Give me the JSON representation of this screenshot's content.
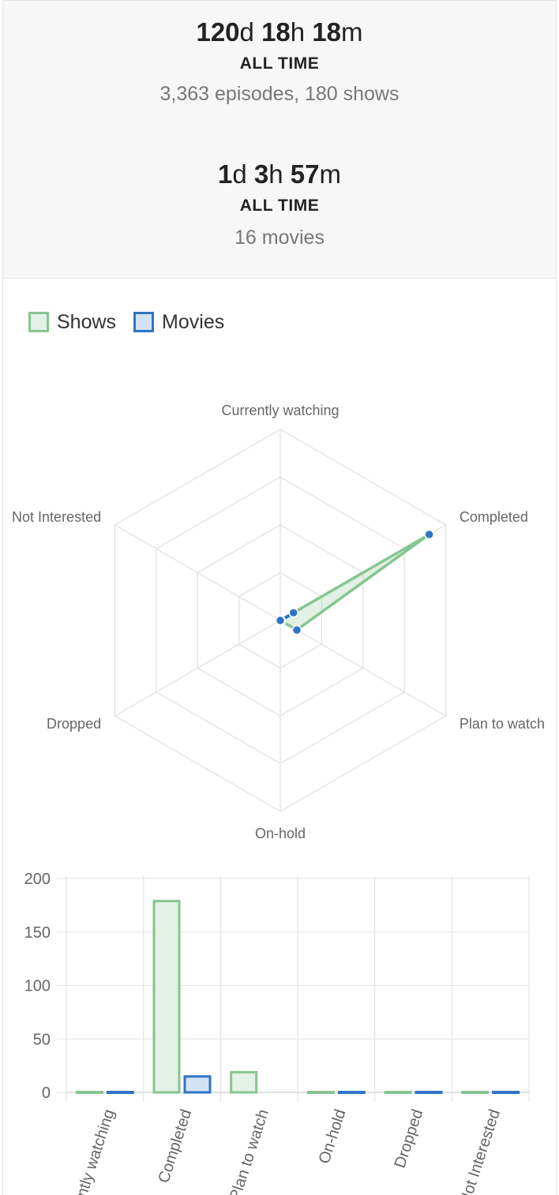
{
  "stats": {
    "shows": {
      "duration": [
        {
          "num": "120",
          "unit": "d"
        },
        {
          "num": "18",
          "unit": "h"
        },
        {
          "num": "18",
          "unit": "m"
        }
      ],
      "period": "ALL TIME",
      "detail": "3,363 episodes, 180 shows"
    },
    "movies": {
      "duration": [
        {
          "num": "1",
          "unit": "d"
        },
        {
          "num": "3",
          "unit": "h"
        },
        {
          "num": "57",
          "unit": "m"
        }
      ],
      "period": "ALL TIME",
      "detail": "16 movies"
    }
  },
  "legend": [
    {
      "label": "Shows",
      "border": "#86c691",
      "fill": "#e3f2e6"
    },
    {
      "label": "Movies",
      "border": "#2f74c7",
      "fill": "#d2e3f5"
    }
  ],
  "chart_data": [
    {
      "type": "radar",
      "categories": [
        "Currently watching",
        "Completed",
        "Plan to watch",
        "On-hold",
        "Dropped",
        "Not Interested"
      ],
      "series": [
        {
          "name": "Shows",
          "values": [
            0,
            180,
            20,
            0,
            0,
            0
          ],
          "color": "#86c691"
        },
        {
          "name": "Movies",
          "values": [
            0,
            16,
            1,
            0,
            0,
            0
          ],
          "color": "#2f74c7"
        }
      ],
      "grid": true,
      "legend_position": "top-left"
    },
    {
      "type": "bar",
      "categories": [
        "Currently watching",
        "Completed",
        "Plan to watch",
        "On-hold",
        "Dropped",
        "Not Interested"
      ],
      "series": [
        {
          "name": "Shows",
          "values": [
            0,
            180,
            20,
            0,
            0,
            0
          ],
          "color": "#86c691",
          "fill": "#e3f2e6"
        },
        {
          "name": "Movies",
          "values": [
            0,
            16,
            1,
            0,
            0,
            0
          ],
          "color": "#2f74c7",
          "fill": "#d2e3f5"
        }
      ],
      "yticks": [
        0,
        50,
        100,
        150,
        200
      ],
      "ylim": [
        0,
        200
      ],
      "grid": true
    }
  ]
}
